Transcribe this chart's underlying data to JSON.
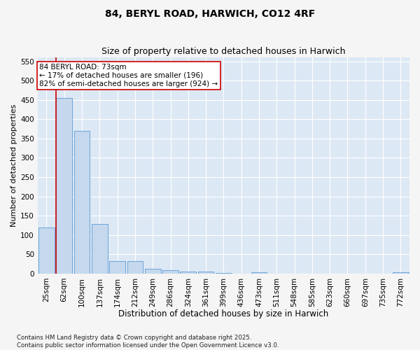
{
  "title": "84, BERYL ROAD, HARWICH, CO12 4RF",
  "subtitle": "Size of property relative to detached houses in Harwich",
  "xlabel": "Distribution of detached houses by size in Harwich",
  "ylabel": "Number of detached properties",
  "categories": [
    "25sqm",
    "62sqm",
    "100sqm",
    "137sqm",
    "174sqm",
    "212sqm",
    "249sqm",
    "286sqm",
    "324sqm",
    "361sqm",
    "399sqm",
    "436sqm",
    "473sqm",
    "511sqm",
    "548sqm",
    "585sqm",
    "623sqm",
    "660sqm",
    "697sqm",
    "735sqm",
    "772sqm"
  ],
  "values": [
    120,
    455,
    370,
    128,
    33,
    33,
    12,
    9,
    6,
    5,
    2,
    0,
    3,
    0,
    0,
    0,
    0,
    0,
    0,
    0,
    3
  ],
  "bar_color": "#c5d8ed",
  "bar_edge_color": "#5b9bd5",
  "vline_x_index": 1,
  "vline_color": "#cc0000",
  "annotation_text": "84 BERYL ROAD: 73sqm\n← 17% of detached houses are smaller (196)\n82% of semi-detached houses are larger (924) →",
  "annotation_box_color": "#ffffff",
  "annotation_box_edge_color": "#cc0000",
  "annotation_fontsize": 7.5,
  "ylim": [
    0,
    560
  ],
  "yticks": [
    0,
    50,
    100,
    150,
    200,
    250,
    300,
    350,
    400,
    450,
    500,
    550
  ],
  "background_color": "#dde8f5",
  "grid_color": "#ffffff",
  "fig_background_color": "#f5f5f5",
  "title_fontsize": 10,
  "subtitle_fontsize": 9,
  "xlabel_fontsize": 8.5,
  "ylabel_fontsize": 8,
  "tick_fontsize": 7.5,
  "footer_text": "Contains HM Land Registry data © Crown copyright and database right 2025.\nContains public sector information licensed under the Open Government Licence v3.0."
}
